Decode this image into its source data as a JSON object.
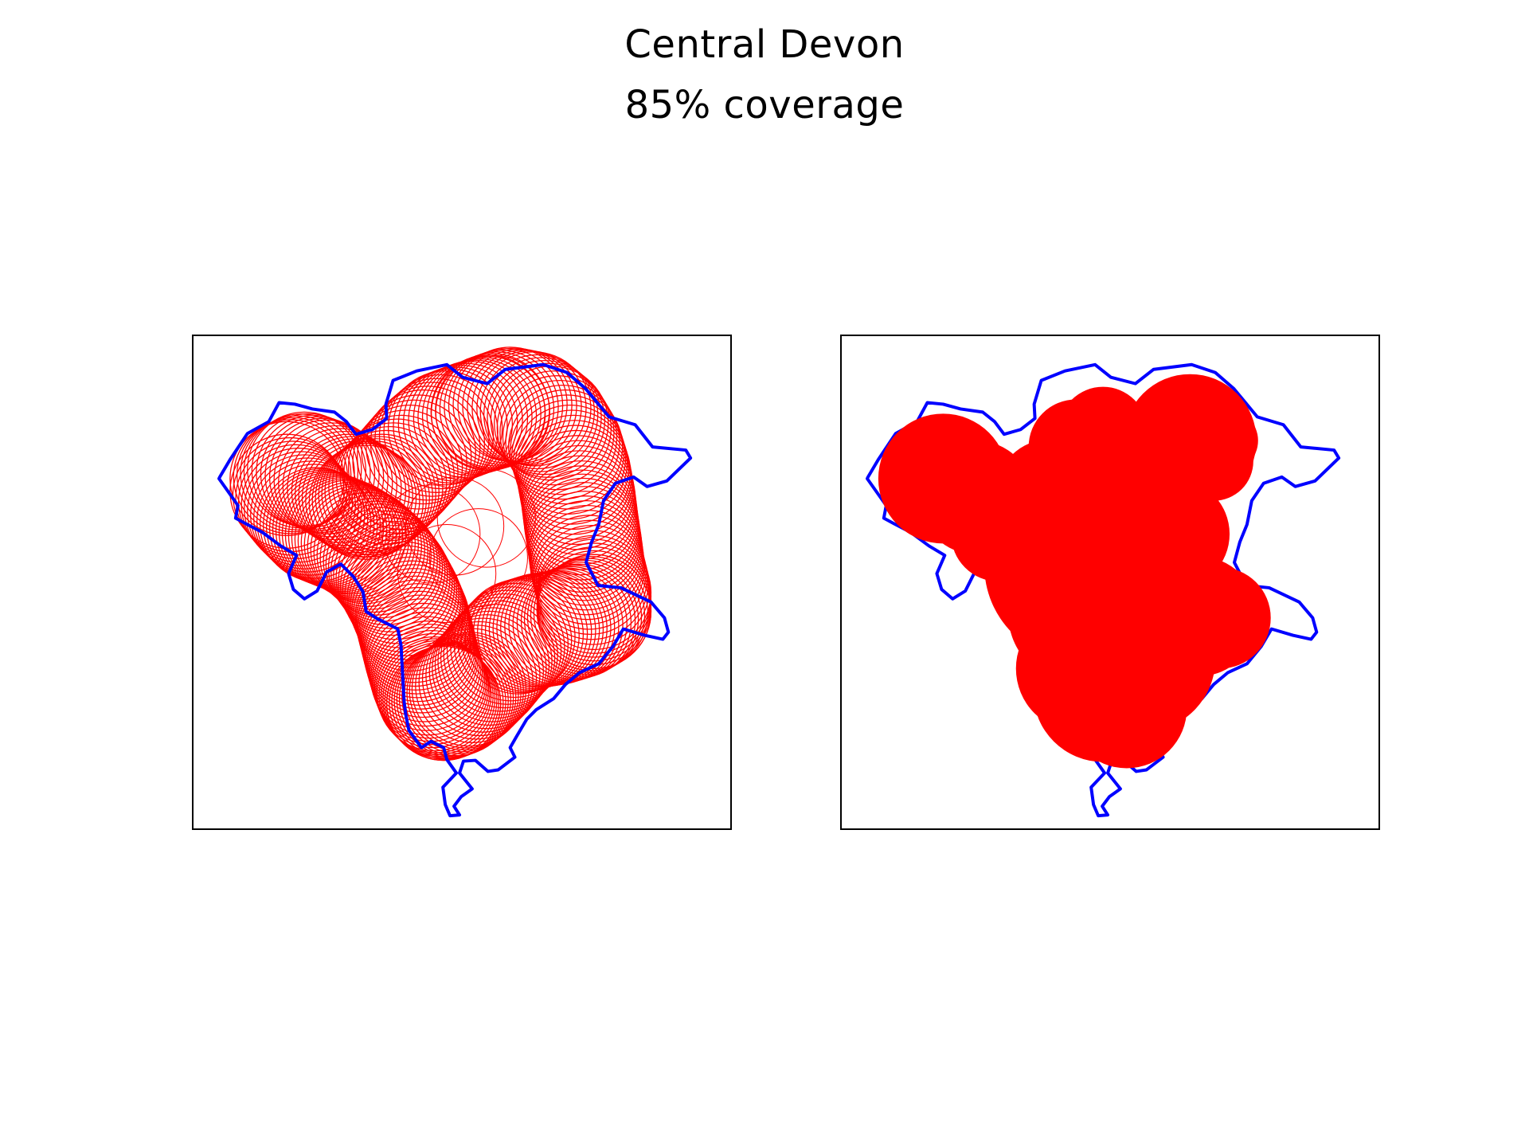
{
  "title": "Central Devon",
  "subtitle": "85% coverage",
  "colors": {
    "boundary": "#0000ff",
    "coverage": "#ff0000",
    "frame": "#000000",
    "background": "#ffffff"
  },
  "panels": [
    {
      "id": "left",
      "style": "circle-outlines"
    },
    {
      "id": "right",
      "style": "filled-union"
    }
  ]
}
